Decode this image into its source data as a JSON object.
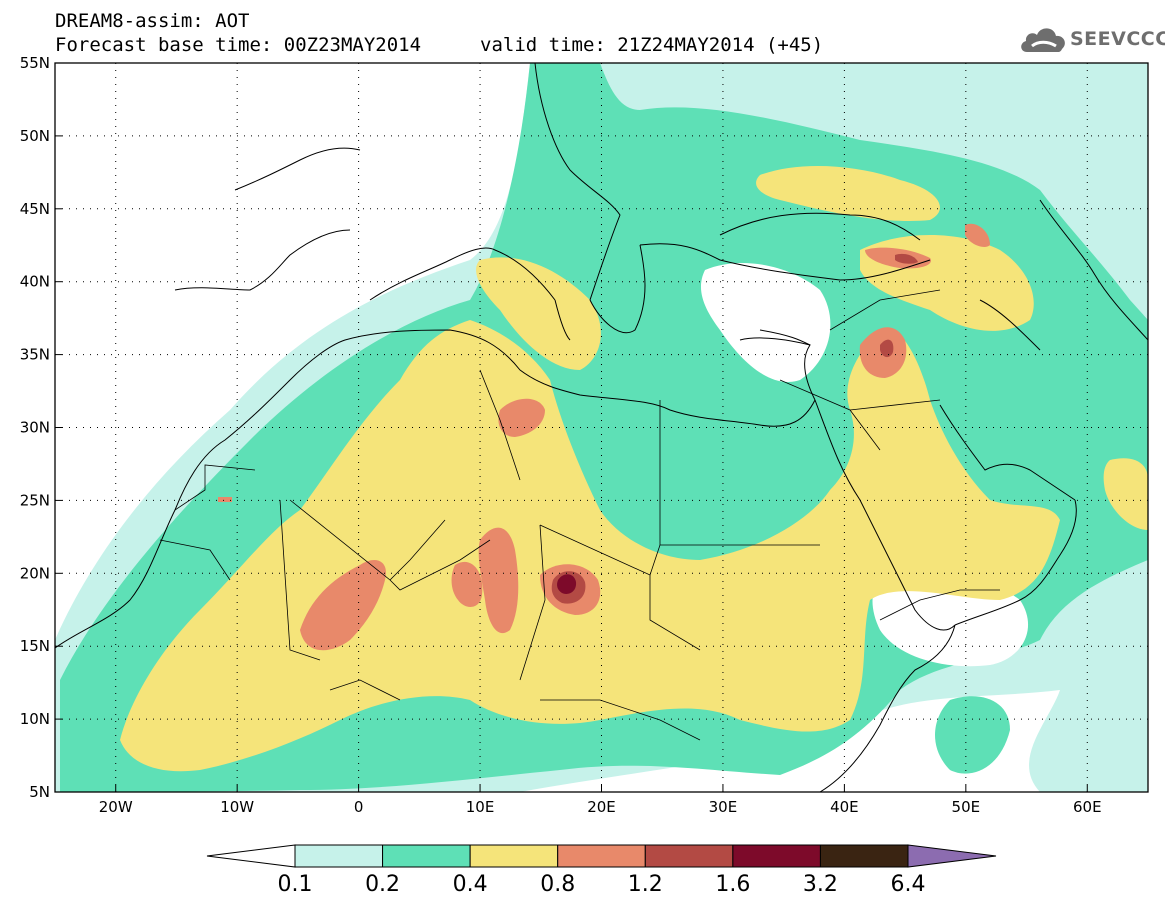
{
  "header": {
    "title_line1": "DREAM8-assim: AOT",
    "base_time": "Forecast base time: 00Z23MAY2014",
    "valid_time": "valid time: 21Z24MAY2014 (+45)"
  },
  "logo": {
    "text": "SEEVCCC",
    "icon": "cloud-icon",
    "color": "#6e6e6e"
  },
  "map": {
    "lon_range": [
      -25,
      65
    ],
    "lat_range": [
      5,
      55
    ],
    "lon_ticks": [
      {
        "value": -20,
        "label": "20W"
      },
      {
        "value": -10,
        "label": "10W"
      },
      {
        "value": 0,
        "label": "0"
      },
      {
        "value": 10,
        "label": "10E"
      },
      {
        "value": 20,
        "label": "20E"
      },
      {
        "value": 30,
        "label": "30E"
      },
      {
        "value": 40,
        "label": "40E"
      },
      {
        "value": 50,
        "label": "50E"
      },
      {
        "value": 60,
        "label": "60E"
      }
    ],
    "lat_ticks": [
      {
        "value": 55,
        "label": "55N"
      },
      {
        "value": 50,
        "label": "50N"
      },
      {
        "value": 45,
        "label": "45N"
      },
      {
        "value": 40,
        "label": "40N"
      },
      {
        "value": 35,
        "label": "35N"
      },
      {
        "value": 30,
        "label": "30N"
      },
      {
        "value": 25,
        "label": "25N"
      },
      {
        "value": 20,
        "label": "20N"
      },
      {
        "value": 15,
        "label": "15N"
      },
      {
        "value": 10,
        "label": "10N"
      },
      {
        "value": 5,
        "label": "5N"
      }
    ],
    "grid": "dotted"
  },
  "colorbar": {
    "labels": [
      "0.1",
      "0.2",
      "0.4",
      "0.8",
      "1.2",
      "1.6",
      "3.2",
      "6.4"
    ],
    "under_color": "#ffffff",
    "over_color": "#8c6cb0",
    "colors": [
      "#c6f2ea",
      "#5ee0b6",
      "#f5e47a",
      "#e8896a",
      "#b34a44",
      "#7d0a2a",
      "#3a2412"
    ]
  }
}
